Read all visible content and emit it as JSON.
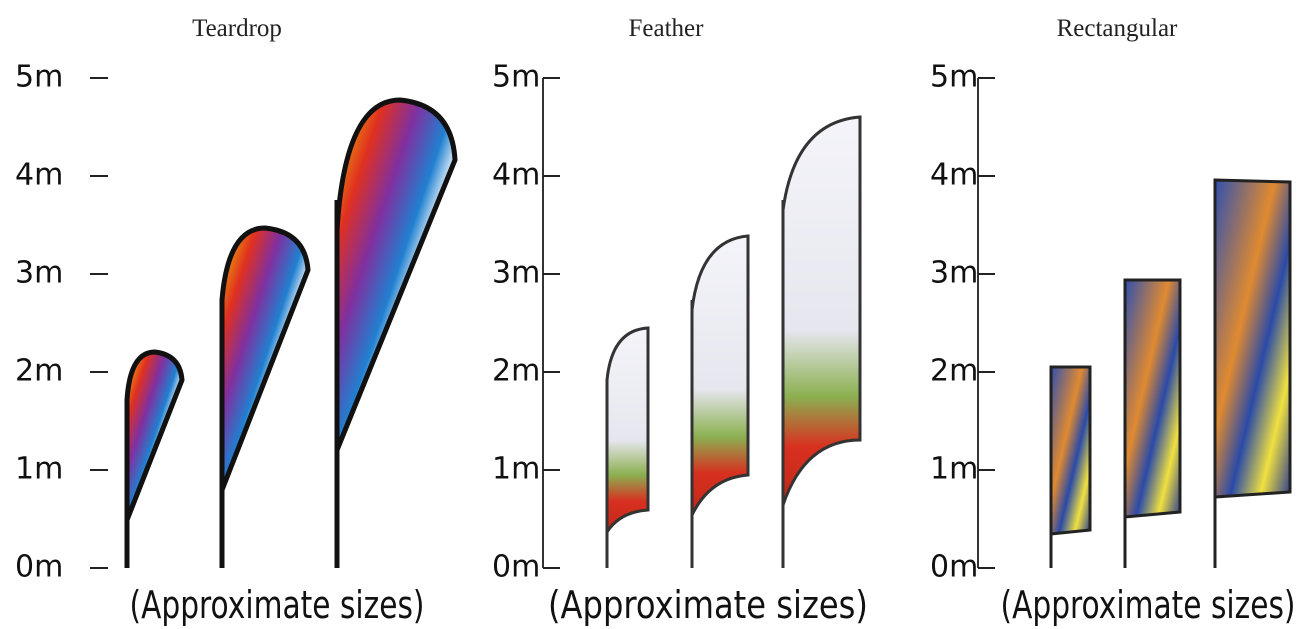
{
  "panels": [
    {
      "title": "Teardrop",
      "scale": [
        "5m",
        "4m",
        "3m",
        "2m",
        "1m",
        "0m"
      ],
      "caption": "(Approximate sizes)"
    },
    {
      "title": "Feather",
      "scale": [
        "5m",
        "4m",
        "3m",
        "2m",
        "1m",
        "0m"
      ],
      "caption": "(Approximate sizes)"
    },
    {
      "title": "Rectangular",
      "scale": [
        "5m",
        "4m",
        "3m",
        "2m",
        "1m",
        "0m"
      ],
      "caption": "(Approximate sizes)"
    }
  ]
}
